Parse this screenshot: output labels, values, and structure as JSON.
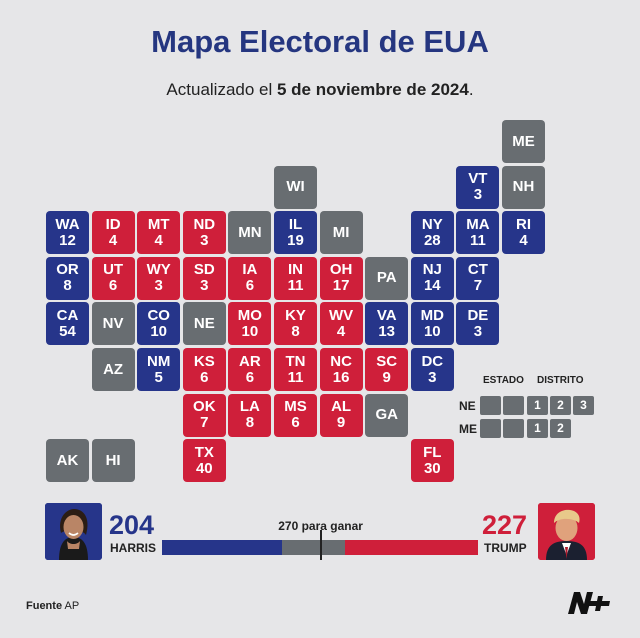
{
  "header": {
    "title": "Mapa Electoral de EUA",
    "subtitle_prefix": "Actualizado el ",
    "subtitle_date": "5 de noviembre de 2024",
    "subtitle_suffix": "."
  },
  "colors": {
    "harris": "#26358a",
    "trump": "#cf1f3a",
    "undecided": "#686d71"
  },
  "map": {
    "states": [
      {
        "abbr": "ME",
        "ev": "",
        "party": "U"
      },
      {
        "abbr": "WI",
        "ev": "",
        "party": "U"
      },
      {
        "abbr": "VT",
        "ev": "3",
        "party": "D"
      },
      {
        "abbr": "NH",
        "ev": "",
        "party": "U"
      },
      {
        "abbr": "WA",
        "ev": "12",
        "party": "D"
      },
      {
        "abbr": "ID",
        "ev": "4",
        "party": "R"
      },
      {
        "abbr": "MT",
        "ev": "4",
        "party": "R"
      },
      {
        "abbr": "ND",
        "ev": "3",
        "party": "R"
      },
      {
        "abbr": "MN",
        "ev": "",
        "party": "U"
      },
      {
        "abbr": "IL",
        "ev": "19",
        "party": "D"
      },
      {
        "abbr": "MI",
        "ev": "",
        "party": "U"
      },
      {
        "abbr": "NY",
        "ev": "28",
        "party": "D"
      },
      {
        "abbr": "MA",
        "ev": "11",
        "party": "D"
      },
      {
        "abbr": "RI",
        "ev": "4",
        "party": "D"
      },
      {
        "abbr": "OR",
        "ev": "8",
        "party": "D"
      },
      {
        "abbr": "UT",
        "ev": "6",
        "party": "R"
      },
      {
        "abbr": "WY",
        "ev": "3",
        "party": "R"
      },
      {
        "abbr": "SD",
        "ev": "3",
        "party": "R"
      },
      {
        "abbr": "IA",
        "ev": "6",
        "party": "R"
      },
      {
        "abbr": "IN",
        "ev": "11",
        "party": "R"
      },
      {
        "abbr": "OH",
        "ev": "17",
        "party": "R"
      },
      {
        "abbr": "PA",
        "ev": "",
        "party": "U"
      },
      {
        "abbr": "NJ",
        "ev": "14",
        "party": "D"
      },
      {
        "abbr": "CT",
        "ev": "7",
        "party": "D"
      },
      {
        "abbr": "CA",
        "ev": "54",
        "party": "D"
      },
      {
        "abbr": "NV",
        "ev": "",
        "party": "U"
      },
      {
        "abbr": "CO",
        "ev": "10",
        "party": "D"
      },
      {
        "abbr": "NE",
        "ev": "",
        "party": "U"
      },
      {
        "abbr": "MO",
        "ev": "10",
        "party": "R"
      },
      {
        "abbr": "KY",
        "ev": "8",
        "party": "R"
      },
      {
        "abbr": "WV",
        "ev": "4",
        "party": "R"
      },
      {
        "abbr": "VA",
        "ev": "13",
        "party": "D"
      },
      {
        "abbr": "MD",
        "ev": "10",
        "party": "D"
      },
      {
        "abbr": "DE",
        "ev": "3",
        "party": "D"
      },
      {
        "abbr": "AZ",
        "ev": "",
        "party": "U"
      },
      {
        "abbr": "NM",
        "ev": "5",
        "party": "D"
      },
      {
        "abbr": "KS",
        "ev": "6",
        "party": "R"
      },
      {
        "abbr": "AR",
        "ev": "6",
        "party": "R"
      },
      {
        "abbr": "TN",
        "ev": "11",
        "party": "R"
      },
      {
        "abbr": "NC",
        "ev": "16",
        "party": "R"
      },
      {
        "abbr": "SC",
        "ev": "9",
        "party": "R"
      },
      {
        "abbr": "DC",
        "ev": "3",
        "party": "D"
      },
      {
        "abbr": "OK",
        "ev": "7",
        "party": "R"
      },
      {
        "abbr": "LA",
        "ev": "8",
        "party": "R"
      },
      {
        "abbr": "MS",
        "ev": "6",
        "party": "R"
      },
      {
        "abbr": "AL",
        "ev": "9",
        "party": "R"
      },
      {
        "abbr": "GA",
        "ev": "",
        "party": "U"
      },
      {
        "abbr": "AK",
        "ev": "",
        "party": "U"
      },
      {
        "abbr": "HI",
        "ev": "",
        "party": "U"
      },
      {
        "abbr": "TX",
        "ev": "40",
        "party": "R"
      },
      {
        "abbr": "FL",
        "ev": "30",
        "party": "R"
      }
    ]
  },
  "legend": {
    "estado_label": "ESTADO",
    "distrito_label": "DISTRITO",
    "ne_label": "NE",
    "me_label": "ME",
    "ne_districts": [
      "1",
      "2",
      "3"
    ],
    "me_districts": [
      "1",
      "2"
    ]
  },
  "results": {
    "harris_votes": "204",
    "harris_name": "HARRIS",
    "trump_votes": "227",
    "trump_name": "TRUMP",
    "goal_label": "270 para ganar",
    "total_votes": 538,
    "goal_value": 270
  },
  "footer": {
    "source_label": "Fuente",
    "source_value": "AP"
  }
}
